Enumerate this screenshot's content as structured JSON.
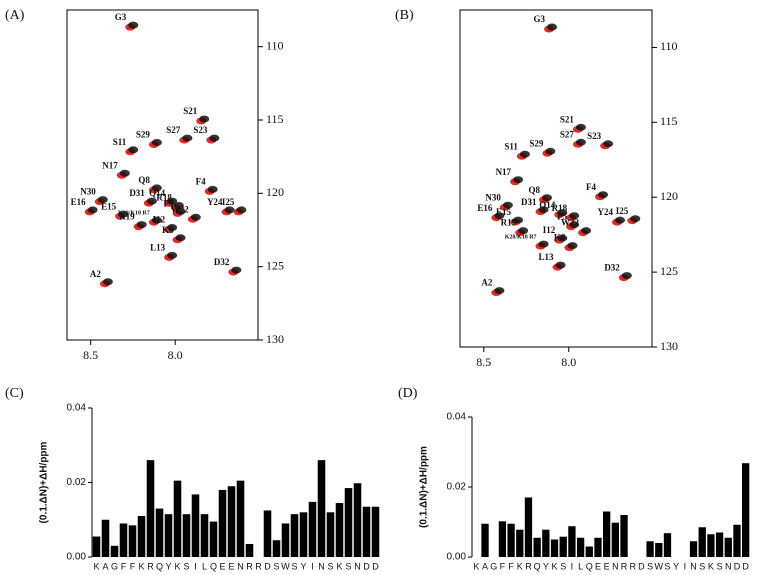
{
  "chart_data": [
    {
      "type": "spectrum",
      "label": "(A)",
      "colors": [
        "#e0201a",
        "#111111"
      ],
      "xlim": [
        8.64,
        7.51
      ],
      "ylim": [
        107.5,
        130
      ],
      "xticks": [
        8.5,
        {
          "value": 8,
          "label": "8.0"
        }
      ],
      "yticks": [
        110,
        115,
        120,
        125,
        130
      ],
      "point_labels": [
        "G3",
        "S21",
        "S23",
        "S27",
        "S11",
        "S29",
        "N17",
        "Q8",
        "F4",
        "D31",
        "Q14",
        "R18",
        "N30",
        "F5",
        "Y24",
        "I25",
        "E16",
        "E15",
        "W22",
        "R19",
        "K28/K10 R7",
        "I12",
        "K6",
        "D32",
        "L13",
        "A2"
      ],
      "x": [
        8.26,
        7.84,
        7.78,
        7.94,
        8.26,
        8.12,
        8.31,
        8.12,
        7.79,
        8.15,
        8.03,
        7.99,
        8.44,
        7.98,
        7.69,
        7.62,
        8.5,
        8.32,
        7.89,
        8.21,
        8.12,
        8.03,
        7.98,
        7.65,
        8.03,
        8.41
      ],
      "values": [
        108.6,
        115.0,
        116.3,
        116.3,
        117.1,
        116.6,
        118.7,
        119.7,
        119.8,
        120.6,
        120.6,
        120.9,
        120.5,
        121.3,
        121.2,
        121.2,
        121.2,
        121.5,
        121.7,
        122.2,
        121.9,
        122.4,
        123.1,
        125.3,
        124.3,
        126.1
      ]
    },
    {
      "type": "spectrum",
      "label": "(B)",
      "colors": [
        "#e0201a",
        "#111111"
      ],
      "xlim": [
        8.64,
        7.51
      ],
      "ylim": [
        107.5,
        130
      ],
      "xticks": [
        8.5,
        {
          "value": 8,
          "label": "8.0"
        }
      ],
      "yticks": [
        110,
        115,
        120,
        125,
        130
      ],
      "point_labels": [
        "G3",
        "S21",
        "S23",
        "S27",
        "S11",
        "S29",
        "N17",
        "Q8",
        "F4",
        "D31",
        "Q14",
        "R18",
        "N30",
        "F5",
        "Y24",
        "I25",
        "E16",
        "E15",
        "W22",
        "R19",
        "K28/K10 R7",
        "I12",
        "K6",
        "D32",
        "L13",
        "A2"
      ],
      "x": [
        8.11,
        7.94,
        7.78,
        7.94,
        8.27,
        8.12,
        8.31,
        8.14,
        7.81,
        8.16,
        8.05,
        7.98,
        8.37,
        7.98,
        7.71,
        7.62,
        8.42,
        8.31,
        7.91,
        8.28,
        8.16,
        8.05,
        7.99,
        7.67,
        8.06,
        8.42
      ],
      "values": [
        108.7,
        115.4,
        116.5,
        116.4,
        117.2,
        117.0,
        118.9,
        120.1,
        119.9,
        120.9,
        121.1,
        121.3,
        120.6,
        121.9,
        121.6,
        121.5,
        121.3,
        121.6,
        122.3,
        122.3,
        123.2,
        122.8,
        123.3,
        125.3,
        124.6,
        126.3
      ]
    },
    {
      "type": "bar",
      "label": "(C)",
      "ylabel": "(0.1.ΔN)+ΔH/ppm",
      "color": "#000000",
      "ylim": [
        0,
        0.04
      ],
      "yticks": [
        {
          "value": 0,
          "label": "0.00"
        },
        {
          "value": 0.02,
          "label": "0.02"
        },
        {
          "value": 0.04,
          "label": "0.04"
        }
      ],
      "categories": [
        "K",
        "A",
        "G",
        "F",
        "F",
        "K",
        "R",
        "Q",
        "Y",
        "K",
        "S",
        "I",
        "L",
        "Q",
        "E",
        "E",
        "N",
        "R",
        "R",
        "D",
        "S",
        "W",
        "S",
        "Y",
        "I",
        "N",
        "S",
        "K",
        "S",
        "N",
        "D",
        "D"
      ],
      "values": [
        0.0055,
        0.01,
        0.003,
        0.009,
        0.0085,
        0.011,
        0.026,
        0.013,
        0.0115,
        0.0205,
        0.0115,
        0.0168,
        0.0115,
        0.0095,
        0.018,
        0.019,
        0.0205,
        0.0035,
        null,
        0.0125,
        0.0045,
        0.009,
        0.0115,
        0.012,
        0.0148,
        0.026,
        0.012,
        0.0145,
        0.0185,
        0.0198,
        0.0135,
        0.0135
      ]
    },
    {
      "type": "bar",
      "label": "(D)",
      "ylabel": "(0.1.ΔN)+ΔH/ppm",
      "color": "#000000",
      "ylim": [
        0,
        0.04
      ],
      "yticks": [
        {
          "value": 0,
          "label": "0.00"
        },
        {
          "value": 0.02,
          "label": "0.02"
        },
        {
          "value": 0.04,
          "label": "0.04"
        }
      ],
      "categories": [
        "K",
        "A",
        "G",
        "F",
        "F",
        "K",
        "R",
        "Q",
        "Y",
        "K",
        "S",
        "I",
        "L",
        "Q",
        "E",
        "E",
        "N",
        "R",
        "R",
        "D",
        "S",
        "W",
        "S",
        "Y",
        "I",
        "N",
        "S",
        "K",
        "S",
        "N",
        "D",
        "D"
      ],
      "values": [
        null,
        0.0095,
        null,
        0.0102,
        0.0095,
        0.0078,
        0.017,
        0.0055,
        0.0078,
        0.005,
        0.0058,
        0.0088,
        0.0055,
        0.003,
        0.0055,
        0.013,
        0.0098,
        0.012,
        null,
        null,
        0.0045,
        0.004,
        0.0068,
        null,
        null,
        0.0045,
        0.0085,
        0.0065,
        0.007,
        0.0055,
        0.0092,
        0.0268
      ]
    }
  ]
}
